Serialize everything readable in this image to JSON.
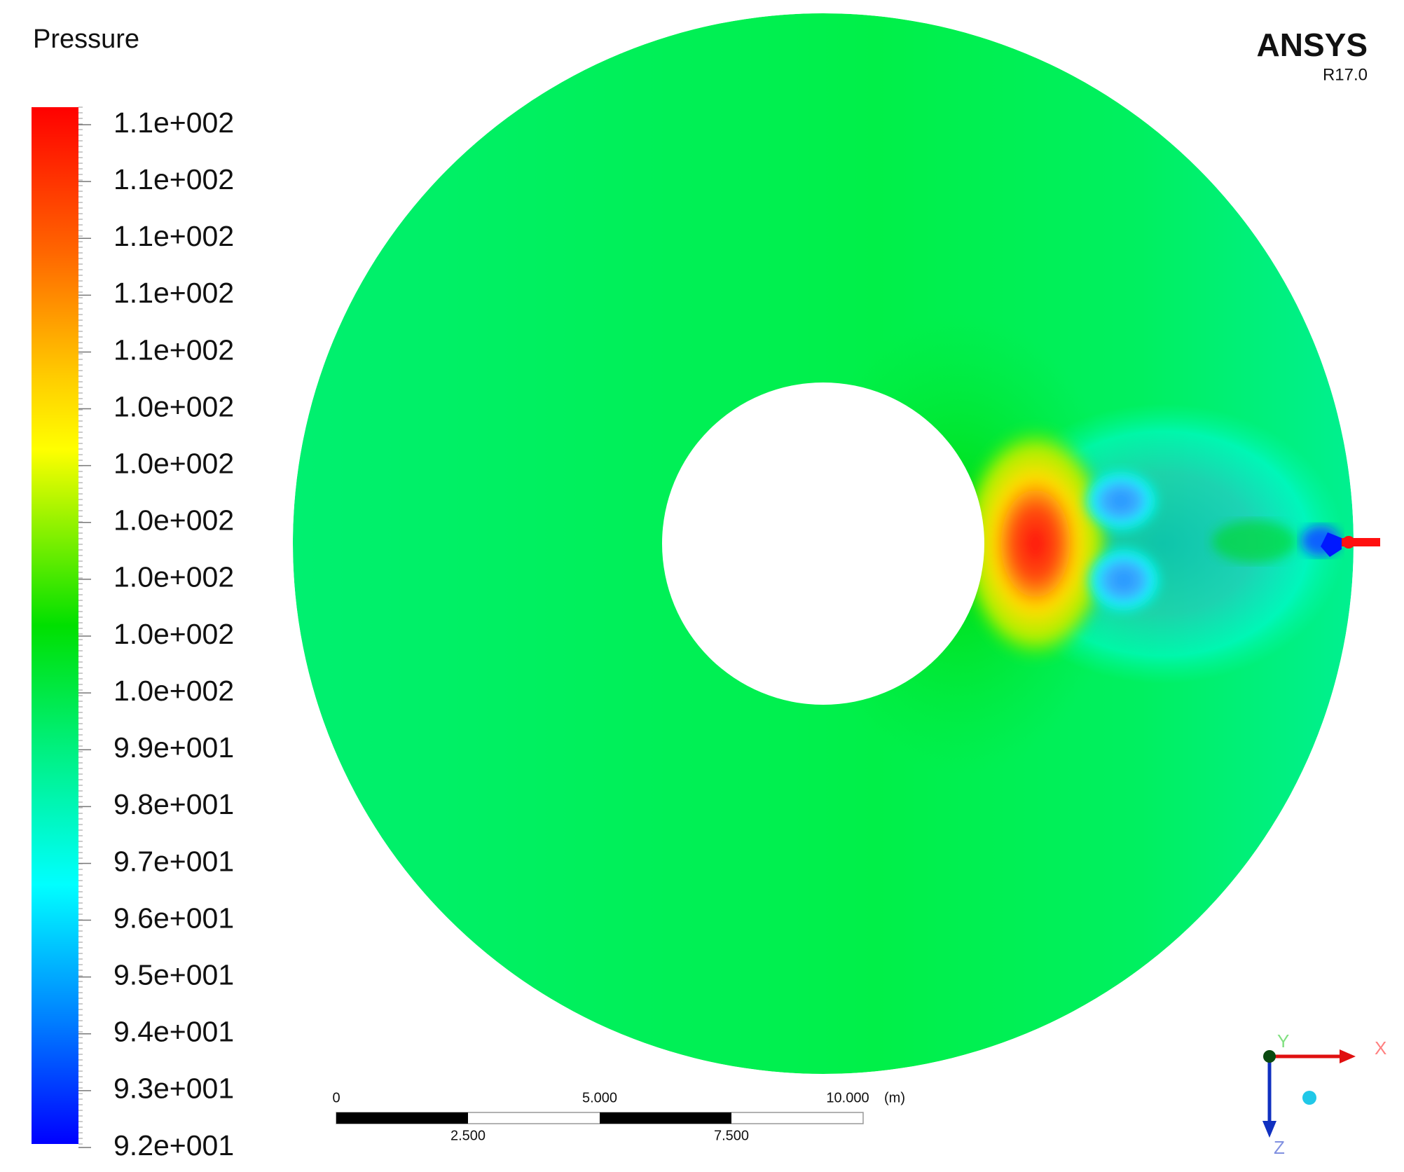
{
  "legend": {
    "title": "Pressure",
    "labels": [
      "1.1e+002",
      "1.1e+002",
      "1.1e+002",
      "1.1e+002",
      "1.1e+002",
      "1.0e+002",
      "1.0e+002",
      "1.0e+002",
      "1.0e+002",
      "1.0e+002",
      "1.0e+002",
      "9.9e+001",
      "9.8e+001",
      "9.7e+001",
      "9.6e+001",
      "9.5e+001",
      "9.4e+001",
      "9.3e+001",
      "9.2e+001"
    ]
  },
  "logo": {
    "name": "ANSYS",
    "version": "R17.0"
  },
  "scale_bar": {
    "top_labels": [
      "0",
      "5.000",
      "10.000"
    ],
    "unit": "(m)",
    "bottom_labels": [
      "2.500",
      "7.500"
    ]
  },
  "triad": {
    "x": "X",
    "y": "Y",
    "z": "Z"
  }
}
